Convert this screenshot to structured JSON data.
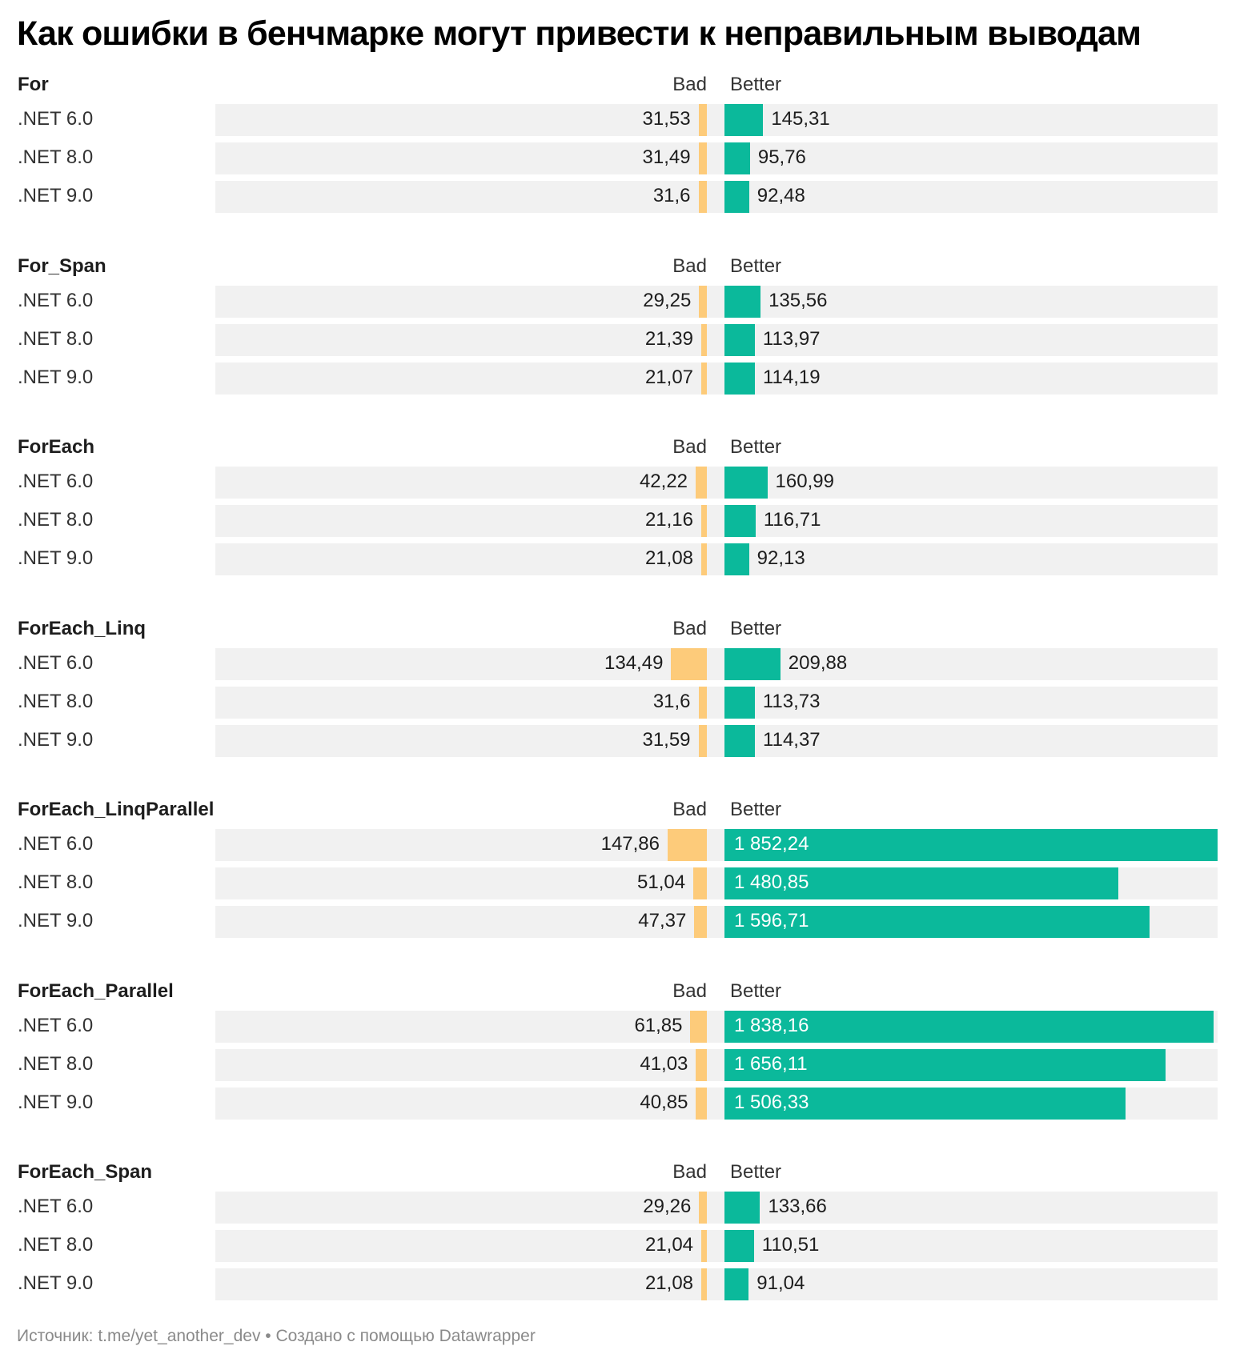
{
  "title": "Как ошибки в бенчмарке могут привести к неправильным выводам",
  "footer": "Источник: t.me/yet_another_dev • Создано с помощью Datawrapper",
  "colors": {
    "bad": "#fdcb7a",
    "better": "#0bb99b",
    "row_background": "#f1f1f1"
  },
  "chart_data": {
    "type": "bar",
    "title": "Как ошибки в бенчмарке могут привести к неправильным выводам",
    "columns": [
      "Bad",
      "Better"
    ],
    "categories": [
      ".NET 6.0",
      ".NET 8.0",
      ".NET 9.0"
    ],
    "value_format": "decimal comma, space thousands separator",
    "xlim_bad": [
      0,
      1852.24
    ],
    "xlim_better": [
      0,
      1852.24
    ],
    "groups": [
      {
        "name": "For",
        "rows": [
          {
            "label": ".NET 6.0",
            "bad": 31.53,
            "bad_label": "31,53",
            "better": 145.31,
            "better_label": "145,31"
          },
          {
            "label": ".NET 8.0",
            "bad": 31.49,
            "bad_label": "31,49",
            "better": 95.76,
            "better_label": "95,76"
          },
          {
            "label": ".NET 9.0",
            "bad": 31.6,
            "bad_label": "31,6",
            "better": 92.48,
            "better_label": "92,48"
          }
        ]
      },
      {
        "name": "For_Span",
        "rows": [
          {
            "label": ".NET 6.0",
            "bad": 29.25,
            "bad_label": "29,25",
            "better": 135.56,
            "better_label": "135,56"
          },
          {
            "label": ".NET 8.0",
            "bad": 21.39,
            "bad_label": "21,39",
            "better": 113.97,
            "better_label": "113,97"
          },
          {
            "label": ".NET 9.0",
            "bad": 21.07,
            "bad_label": "21,07",
            "better": 114.19,
            "better_label": "114,19"
          }
        ]
      },
      {
        "name": "ForEach",
        "rows": [
          {
            "label": ".NET 6.0",
            "bad": 42.22,
            "bad_label": "42,22",
            "better": 160.99,
            "better_label": "160,99"
          },
          {
            "label": ".NET 8.0",
            "bad": 21.16,
            "bad_label": "21,16",
            "better": 116.71,
            "better_label": "116,71"
          },
          {
            "label": ".NET 9.0",
            "bad": 21.08,
            "bad_label": "21,08",
            "better": 92.13,
            "better_label": "92,13"
          }
        ]
      },
      {
        "name": "ForEach_Linq",
        "rows": [
          {
            "label": ".NET 6.0",
            "bad": 134.49,
            "bad_label": "134,49",
            "better": 209.88,
            "better_label": "209,88"
          },
          {
            "label": ".NET 8.0",
            "bad": 31.6,
            "bad_label": "31,6",
            "better": 113.73,
            "better_label": "113,73"
          },
          {
            "label": ".NET 9.0",
            "bad": 31.59,
            "bad_label": "31,59",
            "better": 114.37,
            "better_label": "114,37"
          }
        ]
      },
      {
        "name": "ForEach_LinqParallel",
        "rows": [
          {
            "label": ".NET 6.0",
            "bad": 147.86,
            "bad_label": "147,86",
            "better": 1852.24,
            "better_label": "1 852,24"
          },
          {
            "label": ".NET 8.0",
            "bad": 51.04,
            "bad_label": "51,04",
            "better": 1480.85,
            "better_label": "1 480,85"
          },
          {
            "label": ".NET 9.0",
            "bad": 47.37,
            "bad_label": "47,37",
            "better": 1596.71,
            "better_label": "1 596,71"
          }
        ]
      },
      {
        "name": "ForEach_Parallel",
        "rows": [
          {
            "label": ".NET 6.0",
            "bad": 61.85,
            "bad_label": "61,85",
            "better": 1838.16,
            "better_label": "1 838,16"
          },
          {
            "label": ".NET 8.0",
            "bad": 41.03,
            "bad_label": "41,03",
            "better": 1656.11,
            "better_label": "1 656,11"
          },
          {
            "label": ".NET 9.0",
            "bad": 40.85,
            "bad_label": "40,85",
            "better": 1506.33,
            "better_label": "1 506,33"
          }
        ]
      },
      {
        "name": "ForEach_Span",
        "rows": [
          {
            "label": ".NET 6.0",
            "bad": 29.26,
            "bad_label": "29,26",
            "better": 133.66,
            "better_label": "133,66"
          },
          {
            "label": ".NET 8.0",
            "bad": 21.04,
            "bad_label": "21,04",
            "better": 110.51,
            "better_label": "110,51"
          },
          {
            "label": ".NET 9.0",
            "bad": 21.08,
            "bad_label": "21,08",
            "better": 91.04,
            "better_label": "91,04"
          }
        ]
      }
    ]
  }
}
